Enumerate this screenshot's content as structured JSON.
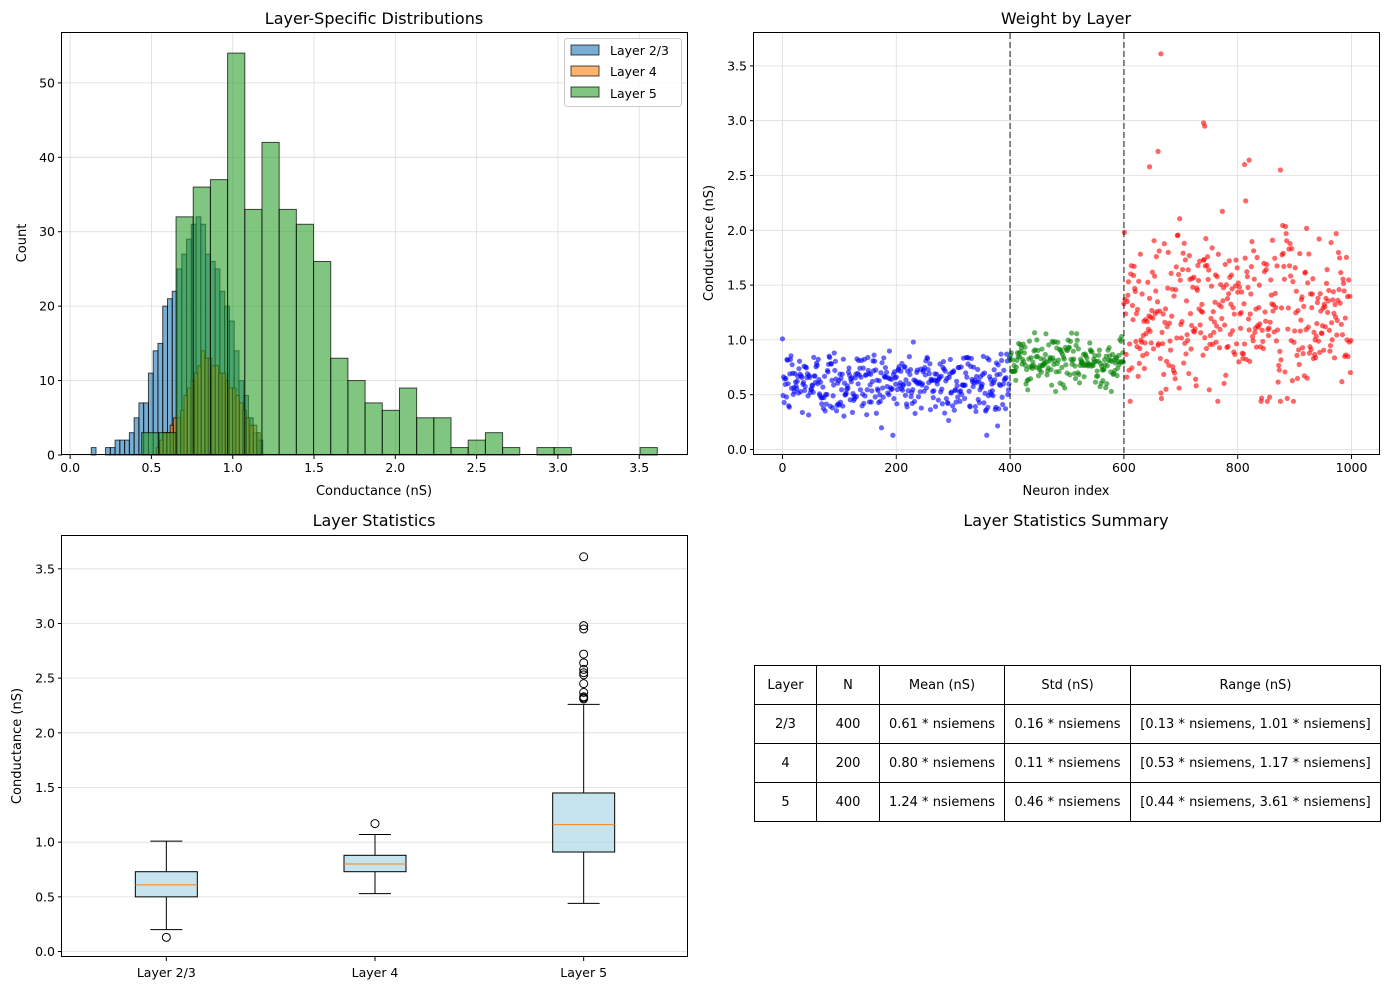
{
  "colors": {
    "layer23": "#1f77b4",
    "layer4": "#ff7f0e",
    "layer5": "#2ca02c",
    "scatter23": "#0000ff",
    "scatter4": "#008000",
    "scatter5": "#ff0000",
    "box_fill": "#add8e6",
    "median": "#ff7f0e"
  },
  "chart_data": [
    {
      "type": "histogram",
      "title": "Layer-Specific Distributions",
      "xlabel": "Conductance (nS)",
      "ylabel": "Count",
      "xlim": [
        -0.05,
        3.8
      ],
      "ylim": [
        0,
        56.7
      ],
      "xticks": [
        "0.0",
        "0.5",
        "1.0",
        "1.5",
        "2.0",
        "2.5",
        "3.0",
        "3.5"
      ],
      "yticks": [
        "0",
        "10",
        "20",
        "30",
        "40",
        "50"
      ],
      "grid": true,
      "legend_position": "upper right",
      "series": [
        {
          "name": "Layer 2/3",
          "bin_start": 0.13,
          "bin_width": 0.0293,
          "counts": [
            1,
            0,
            0,
            1,
            1,
            2,
            2,
            2,
            3,
            5,
            7,
            7,
            11,
            14,
            15,
            20,
            21,
            22,
            25,
            27,
            29,
            31,
            32,
            31,
            27,
            26,
            25,
            22,
            20,
            18,
            14,
            10,
            8,
            5,
            3,
            2
          ]
        },
        {
          "name": "Layer 4",
          "bin_start": 0.53,
          "bin_width": 0.0213,
          "counts": [
            1,
            2,
            3,
            3,
            4,
            5,
            5,
            6,
            8,
            9,
            10,
            11,
            12,
            14,
            13,
            13,
            12,
            12,
            11,
            11,
            10,
            9,
            9,
            8,
            7,
            6,
            5,
            4,
            4,
            3
          ]
        },
        {
          "name": "Layer 5",
          "bin_start": 0.44,
          "bin_width": 0.1057,
          "counts": [
            3,
            3,
            32,
            36,
            37,
            54,
            33,
            42,
            33,
            31,
            26,
            13,
            10,
            7,
            6,
            9,
            5,
            5,
            1,
            2,
            3,
            1,
            0,
            1,
            1,
            0,
            0,
            0,
            0,
            1
          ]
        }
      ]
    },
    {
      "type": "scatter",
      "title": "Weight by Layer",
      "xlabel": "Neuron index",
      "ylabel": "Conductance (nS)",
      "xlim": [
        -50,
        1050
      ],
      "ylim": [
        -0.05,
        3.8
      ],
      "xticks": [
        "0",
        "200",
        "400",
        "600",
        "800",
        "1000"
      ],
      "yticks": [
        "0.0",
        "0.5",
        "1.0",
        "1.5",
        "2.0",
        "2.5",
        "3.0",
        "3.5"
      ],
      "grid": true,
      "vlines": [
        400,
        600
      ],
      "series": [
        {
          "name": "Layer 2/3",
          "x_range": [
            0,
            399
          ],
          "n": 400,
          "mean": 0.61,
          "std": 0.16,
          "min": 0.13,
          "max": 1.01
        },
        {
          "name": "Layer 4",
          "x_range": [
            400,
            599
          ],
          "n": 200,
          "mean": 0.8,
          "std": 0.11,
          "min": 0.53,
          "max": 1.17
        },
        {
          "name": "Layer 5",
          "x_range": [
            600,
            999
          ],
          "n": 400,
          "mean": 1.24,
          "std": 0.46,
          "min": 0.44,
          "max": 3.61,
          "highlights": [
            [
              665,
              3.61
            ],
            [
              740,
              2.98
            ],
            [
              742,
              2.95
            ],
            [
              820,
              2.64
            ],
            [
              660,
              2.72
            ],
            [
              875,
              2.55
            ],
            [
              645,
              2.58
            ],
            [
              812,
              2.6
            ]
          ]
        }
      ]
    },
    {
      "type": "box",
      "title": "Layer Statistics",
      "ylabel": "Conductance (nS)",
      "categories": [
        "Layer 2/3",
        "Layer 4",
        "Layer 5"
      ],
      "ylim": [
        -0.05,
        3.8
      ],
      "yticks": [
        "0.0",
        "0.5",
        "1.0",
        "1.5",
        "2.0",
        "2.5",
        "3.0",
        "3.5"
      ],
      "grid": true,
      "boxes": [
        {
          "whislo": 0.2,
          "q1": 0.5,
          "med": 0.61,
          "q3": 0.73,
          "whishi": 1.01,
          "fliers": [
            0.13
          ]
        },
        {
          "whislo": 0.53,
          "q1": 0.73,
          "med": 0.8,
          "q3": 0.88,
          "whishi": 1.07,
          "fliers": [
            1.17
          ]
        },
        {
          "whislo": 0.44,
          "q1": 0.91,
          "med": 1.16,
          "q3": 1.45,
          "whishi": 2.26,
          "fliers": [
            2.31,
            2.32,
            2.33,
            2.37,
            2.45,
            2.53,
            2.55,
            2.58,
            2.64,
            2.72,
            2.95,
            2.98,
            3.61
          ]
        }
      ]
    },
    {
      "type": "table",
      "title": "Layer Statistics Summary",
      "columns": [
        "Layer",
        "N",
        "Mean (nS)",
        "Std (nS)",
        "Range (nS)"
      ],
      "rows": [
        [
          "2/3",
          "400",
          "0.61 * nsiemens",
          "0.16 * nsiemens",
          "[0.13 * nsiemens, 1.01 * nsiemens]"
        ],
        [
          "4",
          "200",
          "0.80 * nsiemens",
          "0.11 * nsiemens",
          "[0.53 * nsiemens, 1.17 * nsiemens]"
        ],
        [
          "5",
          "400",
          "1.24 * nsiemens",
          "0.46 * nsiemens",
          "[0.44 * nsiemens, 3.61 * nsiemens]"
        ]
      ]
    }
  ]
}
